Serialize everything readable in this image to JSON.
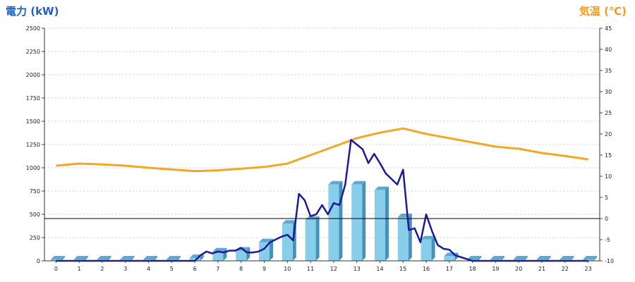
{
  "chart_data": {
    "type": "bar+line",
    "left_axis_label": "電力 (kW)",
    "right_axis_label": "気温 (℃)",
    "x_categories": [
      "0",
      "1",
      "2",
      "3",
      "4",
      "5",
      "6",
      "7",
      "8",
      "9",
      "10",
      "11",
      "12",
      "13",
      "14",
      "15",
      "16",
      "17",
      "18",
      "19",
      "20",
      "21",
      "22",
      "23"
    ],
    "left_ylim": [
      0,
      2500
    ],
    "left_yticks": [
      "0",
      "250",
      "500",
      "750",
      "1000",
      "1250",
      "1500",
      "1750",
      "2000",
      "2250",
      "2500"
    ],
    "right_ylim": [
      -10,
      45
    ],
    "right_yticks": [
      "-10",
      "-5",
      "0",
      "5",
      "10",
      "15",
      "20",
      "25",
      "30",
      "35",
      "40",
      "45"
    ],
    "grid": "horizontal-dashed",
    "bars": {
      "axis": "left",
      "color": "#87ceeb",
      "values": [
        15,
        15,
        15,
        15,
        15,
        15,
        30,
        100,
        110,
        200,
        400,
        440,
        820,
        820,
        760,
        470,
        230,
        50,
        15,
        15,
        15,
        15,
        15,
        15
      ]
    },
    "power_line": {
      "axis": "left",
      "color": "#1a1a9a",
      "x": [
        0,
        1,
        2,
        3,
        4,
        5,
        6,
        6.25,
        6.5,
        6.75,
        7,
        7.25,
        7.5,
        7.75,
        8,
        8.25,
        8.5,
        8.75,
        9,
        9.25,
        9.5,
        9.75,
        10,
        10.25,
        10.5,
        10.75,
        11,
        11.25,
        11.5,
        11.75,
        12,
        12.25,
        12.5,
        12.75,
        13,
        13.25,
        13.5,
        13.75,
        14,
        14.25,
        14.5,
        14.75,
        15,
        15.25,
        15.5,
        15.75,
        16,
        16.25,
        16.5,
        16.75,
        17,
        17.25,
        18,
        19,
        20,
        21,
        22,
        23
      ],
      "y": [
        0,
        0,
        0,
        0,
        0,
        0,
        0,
        60,
        100,
        80,
        100,
        90,
        110,
        110,
        140,
        90,
        90,
        100,
        130,
        200,
        230,
        260,
        280,
        220,
        720,
        650,
        480,
        500,
        600,
        500,
        620,
        600,
        820,
        1300,
        1250,
        1200,
        1050,
        1150,
        1050,
        940,
        880,
        820,
        980,
        330,
        350,
        200,
        500,
        320,
        170,
        130,
        120,
        60,
        0,
        0,
        0,
        0,
        0,
        0
      ]
    },
    "temperature_line": {
      "axis": "right",
      "color": "#f5a623",
      "x": [
        0,
        1,
        2,
        3,
        4,
        5,
        6,
        7,
        8,
        9,
        10,
        11,
        12,
        13,
        14,
        15,
        16,
        17,
        18,
        19,
        20,
        21,
        22,
        23
      ],
      "y": [
        12.5,
        13,
        12.8,
        12.5,
        12,
        11.6,
        11.2,
        11.4,
        11.8,
        12.2,
        13,
        15,
        17,
        19,
        20.3,
        21.3,
        20,
        19,
        18,
        17,
        16.5,
        15.5,
        14.8,
        14
      ]
    },
    "reference_line": {
      "axis": "left",
      "value": 455,
      "color": "#000000"
    }
  }
}
